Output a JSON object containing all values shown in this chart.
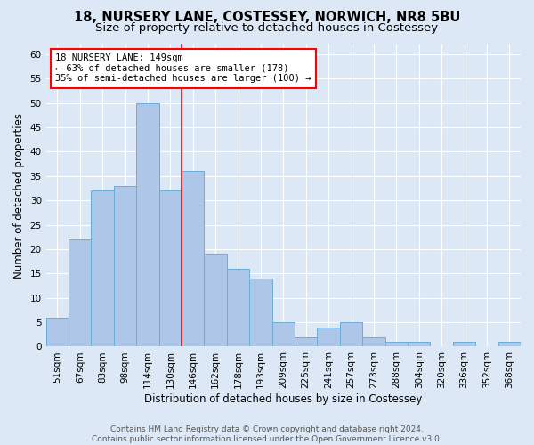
{
  "title": "18, NURSERY LANE, COSTESSEY, NORWICH, NR8 5BU",
  "subtitle": "Size of property relative to detached houses in Costessey",
  "xlabel": "Distribution of detached houses by size in Costessey",
  "ylabel": "Number of detached properties",
  "categories": [
    "51sqm",
    "67sqm",
    "83sqm",
    "98sqm",
    "114sqm",
    "130sqm",
    "146sqm",
    "162sqm",
    "178sqm",
    "193sqm",
    "209sqm",
    "225sqm",
    "241sqm",
    "257sqm",
    "273sqm",
    "288sqm",
    "304sqm",
    "320sqm",
    "336sqm",
    "352sqm",
    "368sqm"
  ],
  "values": [
    6,
    22,
    32,
    33,
    50,
    32,
    36,
    19,
    16,
    14,
    5,
    2,
    4,
    5,
    2,
    1,
    1,
    0,
    1,
    0,
    1
  ],
  "bar_color": "#aec6e8",
  "bar_edgecolor": "#6aaed6",
  "marker_index": 6,
  "annotation_line1": "18 NURSERY LANE: 149sqm",
  "annotation_line2": "← 63% of detached houses are smaller (178)",
  "annotation_line3": "35% of semi-detached houses are larger (100) →",
  "annotation_box_color": "white",
  "annotation_box_edgecolor": "red",
  "marker_line_color": "red",
  "ylim": [
    0,
    62
  ],
  "yticks": [
    0,
    5,
    10,
    15,
    20,
    25,
    30,
    35,
    40,
    45,
    50,
    55,
    60
  ],
  "background_color": "#dce8f5",
  "plot_background_color": "#dce8f5",
  "grid_color": "white",
  "footer_line1": "Contains HM Land Registry data © Crown copyright and database right 2024.",
  "footer_line2": "Contains public sector information licensed under the Open Government Licence v3.0.",
  "title_fontsize": 10.5,
  "subtitle_fontsize": 9.5,
  "axis_label_fontsize": 8.5,
  "tick_fontsize": 7.5,
  "annotation_fontsize": 7.5,
  "footer_fontsize": 6.5
}
